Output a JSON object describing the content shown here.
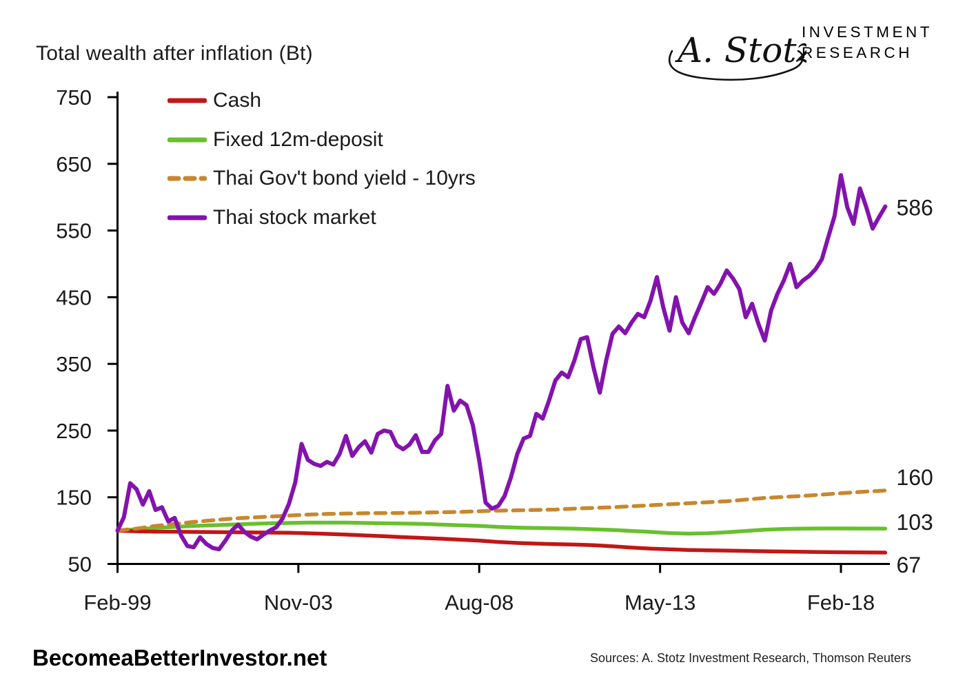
{
  "logo": {
    "signature_text": "A. Stotz",
    "line1": "INVESTMENT",
    "line2": "RESEARCH"
  },
  "footer": {
    "site": "BecomeaBetterInvestor.net",
    "sources": "Sources: A. Stotz Investment Research, Thomson Reuters"
  },
  "chart_data": {
    "type": "line",
    "title": "Total wealth after inflation (Bt)",
    "x_unit": "months since Feb-1999",
    "ylim": [
      50,
      750
    ],
    "yticks": [
      50,
      150,
      250,
      350,
      450,
      550,
      650,
      750
    ],
    "xtick_months": [
      0,
      57,
      114,
      171,
      228
    ],
    "xtick_labels": [
      "Feb-99",
      "Nov-03",
      "Aug-08",
      "May-13",
      "Feb-18"
    ],
    "grid": false,
    "legend_position": "top-left-inside",
    "axis_color": "#000000",
    "series": [
      {
        "name": "Cash",
        "color": "#c31616",
        "style": "solid",
        "width": 5.5,
        "end_label": "67",
        "label_dy": 18,
        "points": [
          [
            0,
            100
          ],
          [
            6,
            99
          ],
          [
            12,
            98.5
          ],
          [
            18,
            98.2
          ],
          [
            24,
            98
          ],
          [
            30,
            97.8
          ],
          [
            36,
            97.5
          ],
          [
            42,
            97.2
          ],
          [
            48,
            97
          ],
          [
            54,
            96.8
          ],
          [
            60,
            96
          ],
          [
            66,
            95
          ],
          [
            72,
            94
          ],
          [
            78,
            92.8
          ],
          [
            84,
            91.5
          ],
          [
            90,
            90.2
          ],
          [
            96,
            89
          ],
          [
            102,
            87.8
          ],
          [
            108,
            86.5
          ],
          [
            114,
            85
          ],
          [
            120,
            83
          ],
          [
            126,
            81.5
          ],
          [
            132,
            80.5
          ],
          [
            138,
            79.8
          ],
          [
            144,
            79
          ],
          [
            150,
            78.2
          ],
          [
            156,
            76.5
          ],
          [
            162,
            74.5
          ],
          [
            168,
            73
          ],
          [
            174,
            72
          ],
          [
            180,
            71
          ],
          [
            186,
            70.5
          ],
          [
            192,
            70
          ],
          [
            198,
            69.5
          ],
          [
            204,
            69
          ],
          [
            210,
            68.6
          ],
          [
            216,
            68.2
          ],
          [
            222,
            67.9
          ],
          [
            228,
            67.6
          ],
          [
            234,
            67.3
          ],
          [
            242,
            67
          ]
        ]
      },
      {
        "name": "Fixed 12m-deposit",
        "color": "#68c02e",
        "style": "solid",
        "width": 5.5,
        "end_label": "103",
        "label_dy": -9,
        "points": [
          [
            0,
            100
          ],
          [
            6,
            102
          ],
          [
            12,
            104
          ],
          [
            18,
            105.5
          ],
          [
            24,
            107
          ],
          [
            30,
            108
          ],
          [
            36,
            109
          ],
          [
            42,
            110
          ],
          [
            48,
            111
          ],
          [
            54,
            111.5
          ],
          [
            60,
            112
          ],
          [
            66,
            112
          ],
          [
            72,
            112
          ],
          [
            78,
            111.5
          ],
          [
            84,
            111
          ],
          [
            90,
            110.5
          ],
          [
            96,
            110
          ],
          [
            102,
            109
          ],
          [
            108,
            108
          ],
          [
            114,
            107
          ],
          [
            120,
            105.5
          ],
          [
            126,
            104.5
          ],
          [
            132,
            104
          ],
          [
            138,
            103.5
          ],
          [
            144,
            103
          ],
          [
            150,
            102
          ],
          [
            156,
            101
          ],
          [
            162,
            99.5
          ],
          [
            168,
            98
          ],
          [
            174,
            96.2
          ],
          [
            180,
            95.5
          ],
          [
            186,
            96
          ],
          [
            192,
            97.5
          ],
          [
            198,
            99.5
          ],
          [
            204,
            101.5
          ],
          [
            210,
            102.5
          ],
          [
            216,
            103
          ],
          [
            222,
            103.2
          ],
          [
            228,
            103.2
          ],
          [
            234,
            103.1
          ],
          [
            242,
            103
          ]
        ]
      },
      {
        "name": "Thai Gov't bond yield - 10yrs",
        "color": "#c8872e",
        "style": "dashed",
        "width": 5.5,
        "end_label": "160",
        "label_dy": -19,
        "points": [
          [
            0,
            100
          ],
          [
            6,
            103
          ],
          [
            12,
            107
          ],
          [
            18,
            110
          ],
          [
            24,
            113
          ],
          [
            30,
            115.5
          ],
          [
            36,
            118
          ],
          [
            42,
            119.5
          ],
          [
            48,
            121
          ],
          [
            54,
            122.5
          ],
          [
            60,
            124
          ],
          [
            66,
            125
          ],
          [
            78,
            126
          ],
          [
            90,
            126.5
          ],
          [
            96,
            127
          ],
          [
            102,
            127.5
          ],
          [
            108,
            128
          ],
          [
            114,
            129
          ],
          [
            120,
            130
          ],
          [
            126,
            130.5
          ],
          [
            132,
            131
          ],
          [
            138,
            131.5
          ],
          [
            144,
            133
          ],
          [
            150,
            134
          ],
          [
            156,
            135
          ],
          [
            162,
            136.5
          ],
          [
            168,
            138
          ],
          [
            174,
            139.5
          ],
          [
            180,
            141
          ],
          [
            186,
            142.5
          ],
          [
            192,
            144
          ],
          [
            198,
            146.5
          ],
          [
            204,
            149
          ],
          [
            210,
            150.5
          ],
          [
            216,
            152
          ],
          [
            222,
            154
          ],
          [
            228,
            156
          ],
          [
            234,
            158
          ],
          [
            242,
            160
          ]
        ]
      },
      {
        "name": "Thai stock market",
        "color": "#8313ad",
        "style": "solid",
        "width": 6,
        "end_label": "586",
        "label_dy": 2,
        "points": [
          [
            0,
            100
          ],
          [
            2,
            120
          ],
          [
            4,
            171
          ],
          [
            6,
            162
          ],
          [
            8,
            139
          ],
          [
            10,
            159
          ],
          [
            12,
            131
          ],
          [
            14,
            135
          ],
          [
            16,
            114
          ],
          [
            18,
            119
          ],
          [
            20,
            93
          ],
          [
            22,
            77
          ],
          [
            24,
            75
          ],
          [
            26,
            90
          ],
          [
            28,
            80
          ],
          [
            30,
            74
          ],
          [
            32,
            72
          ],
          [
            34,
            85
          ],
          [
            36,
            100
          ],
          [
            38,
            109
          ],
          [
            40,
            98
          ],
          [
            42,
            91
          ],
          [
            44,
            87
          ],
          [
            46,
            94
          ],
          [
            48,
            100
          ],
          [
            50,
            105
          ],
          [
            52,
            118
          ],
          [
            54,
            140
          ],
          [
            56,
            172
          ],
          [
            58,
            230
          ],
          [
            60,
            206
          ],
          [
            62,
            200
          ],
          [
            64,
            197
          ],
          [
            66,
            203
          ],
          [
            68,
            199
          ],
          [
            70,
            215
          ],
          [
            72,
            242
          ],
          [
            74,
            212
          ],
          [
            76,
            225
          ],
          [
            78,
            234
          ],
          [
            80,
            217
          ],
          [
            82,
            245
          ],
          [
            84,
            250
          ],
          [
            86,
            248
          ],
          [
            88,
            228
          ],
          [
            90,
            222
          ],
          [
            92,
            229
          ],
          [
            94,
            243
          ],
          [
            96,
            218
          ],
          [
            98,
            218
          ],
          [
            100,
            235
          ],
          [
            102,
            245
          ],
          [
            104,
            317
          ],
          [
            106,
            280
          ],
          [
            108,
            295
          ],
          [
            110,
            288
          ],
          [
            112,
            258
          ],
          [
            114,
            205
          ],
          [
            116,
            142
          ],
          [
            118,
            133
          ],
          [
            120,
            137
          ],
          [
            122,
            152
          ],
          [
            124,
            180
          ],
          [
            126,
            215
          ],
          [
            128,
            238
          ],
          [
            130,
            242
          ],
          [
            132,
            275
          ],
          [
            134,
            268
          ],
          [
            136,
            295
          ],
          [
            138,
            325
          ],
          [
            140,
            337
          ],
          [
            142,
            330
          ],
          [
            144,
            355
          ],
          [
            146,
            387
          ],
          [
            148,
            390
          ],
          [
            150,
            345
          ],
          [
            152,
            307
          ],
          [
            154,
            355
          ],
          [
            156,
            395
          ],
          [
            158,
            406
          ],
          [
            160,
            396
          ],
          [
            162,
            412
          ],
          [
            164,
            425
          ],
          [
            166,
            420
          ],
          [
            168,
            445
          ],
          [
            170,
            480
          ],
          [
            172,
            435
          ],
          [
            174,
            400
          ],
          [
            176,
            450
          ],
          [
            178,
            412
          ],
          [
            180,
            396
          ],
          [
            182,
            420
          ],
          [
            184,
            442
          ],
          [
            186,
            465
          ],
          [
            188,
            455
          ],
          [
            190,
            470
          ],
          [
            192,
            490
          ],
          [
            194,
            478
          ],
          [
            196,
            462
          ],
          [
            198,
            420
          ],
          [
            200,
            440
          ],
          [
            202,
            410
          ],
          [
            204,
            385
          ],
          [
            206,
            430
          ],
          [
            208,
            455
          ],
          [
            210,
            475
          ],
          [
            212,
            500
          ],
          [
            214,
            465
          ],
          [
            216,
            475
          ],
          [
            218,
            482
          ],
          [
            220,
            492
          ],
          [
            222,
            507
          ],
          [
            224,
            540
          ],
          [
            226,
            572
          ],
          [
            228,
            633
          ],
          [
            230,
            585
          ],
          [
            232,
            560
          ],
          [
            234,
            613
          ],
          [
            236,
            585
          ],
          [
            238,
            553
          ],
          [
            240,
            570
          ],
          [
            242,
            586
          ]
        ]
      }
    ]
  }
}
